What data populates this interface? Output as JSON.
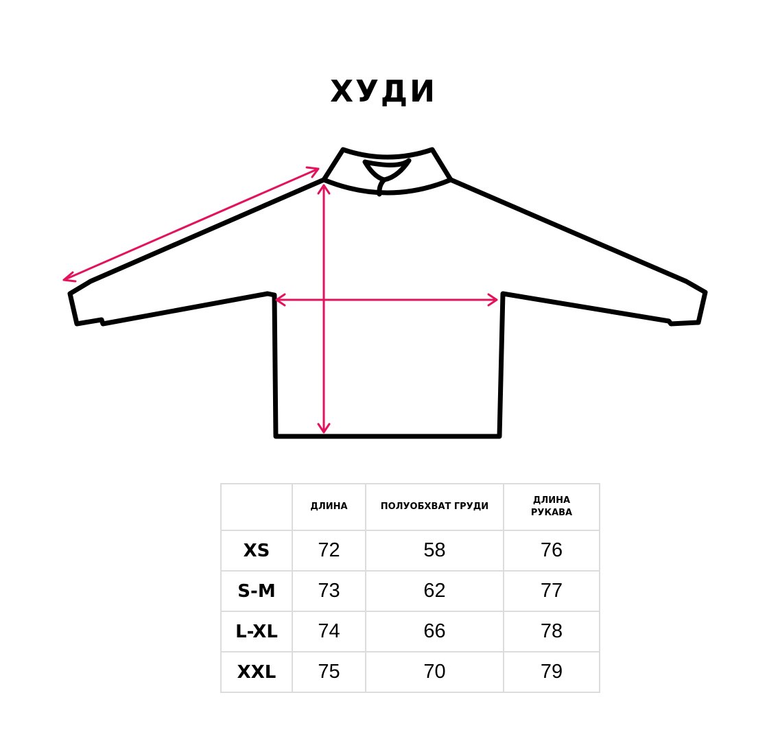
{
  "title": "ХУДИ",
  "colors": {
    "outline": "#000000",
    "measure_arrows": "#e3125c",
    "table_border": "#dcdcdc"
  },
  "table": {
    "headers": [
      "",
      "ДЛИНА",
      "ПОЛУОБХВАТ ГРУДИ",
      "ДЛИНА РУКАВА"
    ],
    "rows": [
      {
        "size": "XS",
        "values": [
          "72",
          "58",
          "76"
        ]
      },
      {
        "size": "S-M",
        "values": [
          "73",
          "62",
          "77"
        ]
      },
      {
        "size": "L-XL",
        "values": [
          "74",
          "66",
          "78"
        ]
      },
      {
        "size": "XXL",
        "values": [
          "75",
          "70",
          "79"
        ]
      }
    ]
  }
}
